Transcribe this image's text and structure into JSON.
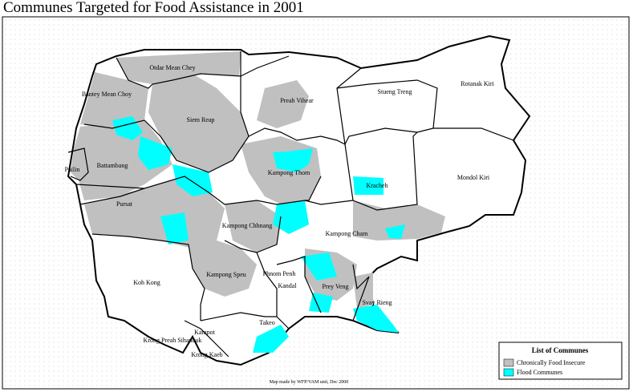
{
  "title": "Communes Targeted for Food Assistance in 2001",
  "provinces": [
    {
      "label": "Otdar Mean Chey"
    },
    {
      "label": "Bantey Mean Choy"
    },
    {
      "label": "Siem Reap"
    },
    {
      "label": "Preah Vihear"
    },
    {
      "label": "Stueng Treng"
    },
    {
      "label": "Rotanak Kiri"
    },
    {
      "label": "Pailin"
    },
    {
      "label": "Battambang"
    },
    {
      "label": "Kampong Thom"
    },
    {
      "label": "Kracheh"
    },
    {
      "label": "Mondol Kiri"
    },
    {
      "label": "Pursat"
    },
    {
      "label": "Kampong Chhnang"
    },
    {
      "label": "Kampong Cham"
    },
    {
      "label": "Koh Kong"
    },
    {
      "label": "Kampong Speu"
    },
    {
      "label": "Phnom Penh"
    },
    {
      "label": "Kandal"
    },
    {
      "label": "Prey Veng"
    },
    {
      "label": "Svay Rieng"
    },
    {
      "label": "Takeo"
    },
    {
      "label": "Kampot"
    },
    {
      "label": "Krong Preah Sihanouk"
    },
    {
      "label": "Krong Kaeb"
    }
  ],
  "legend": {
    "title": "List of Communes",
    "items": [
      {
        "label": "Chronically Food Insecure",
        "color": "#c0c0c0"
      },
      {
        "label": "Flood Communes",
        "color": "#00ffff"
      }
    ]
  },
  "credit": "Map made by WFP/VAM unit, Dec 2000"
}
